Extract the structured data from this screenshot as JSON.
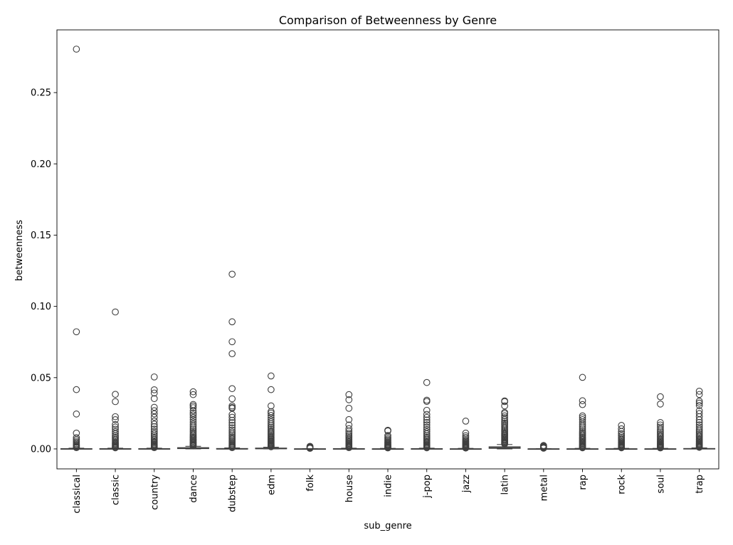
{
  "chart_data": {
    "type": "box",
    "title": "Comparison of Betweenness by Genre",
    "xlabel": "sub_genre",
    "ylabel": "betweenness",
    "ylim": [
      -0.014,
      0.294
    ],
    "yticks": [
      "0.00",
      "0.05",
      "0.10",
      "0.15",
      "0.20",
      "0.25"
    ],
    "ytick_values": [
      0,
      0.05,
      0.1,
      0.15,
      0.2,
      0.25
    ],
    "grid": false,
    "categories": [
      "classical",
      "classic",
      "country",
      "dance",
      "dubstep",
      "edm",
      "folk",
      "house",
      "indie",
      "j-pop",
      "jazz",
      "latin",
      "metal",
      "rap",
      "rock",
      "soul",
      "trap"
    ],
    "boxes": [
      {
        "q1": 0.0,
        "median": 0.0,
        "q3": 0.0002,
        "whisker_low": 0.0,
        "whisker_high": 0.0005,
        "outliers": [
          0.2805,
          0.0822,
          0.0416,
          0.0245,
          0.0111,
          0.0079,
          0.0066,
          0.0055,
          0.0046,
          0.0037,
          0.003,
          0.0024,
          0.0018,
          0.0013,
          0.0009
        ]
      },
      {
        "q1": 0.0,
        "median": 0.0,
        "q3": 0.0002,
        "whisker_low": 0.0,
        "whisker_high": 0.0005,
        "outliers": [
          0.0961,
          0.0383,
          0.0332,
          0.0226,
          0.0205,
          0.0171,
          0.0153,
          0.0138,
          0.0122,
          0.0108,
          0.0095,
          0.0084,
          0.0074,
          0.0064,
          0.0055,
          0.0047,
          0.004,
          0.0034,
          0.0028,
          0.0022,
          0.0017,
          0.0012,
          0.0008
        ]
      },
      {
        "q1": 0.0,
        "median": 0.0,
        "q3": 0.0002,
        "whisker_low": 0.0,
        "whisker_high": 0.0005,
        "outliers": [
          0.0505,
          0.0415,
          0.0392,
          0.0353,
          0.0292,
          0.0268,
          0.0246,
          0.0222,
          0.0196,
          0.0174,
          0.0156,
          0.0139,
          0.0123,
          0.0109,
          0.0096,
          0.0085,
          0.0075,
          0.0066,
          0.0057,
          0.0049,
          0.0042,
          0.0035,
          0.0029,
          0.0023,
          0.0018,
          0.0013,
          0.0009
        ]
      },
      {
        "q1": 0.0002,
        "median": 0.0004,
        "q3": 0.0009,
        "whisker_low": 0.0,
        "whisker_high": 0.0018,
        "outliers": [
          0.0401,
          0.0381,
          0.0312,
          0.0301,
          0.0289,
          0.0268,
          0.0251,
          0.0238,
          0.0221,
          0.0205,
          0.0189,
          0.0174,
          0.016,
          0.0147,
          0.0135,
          0.0123,
          0.0112,
          0.0102,
          0.0093,
          0.0084,
          0.0076,
          0.0068,
          0.0061,
          0.0054,
          0.0047,
          0.0041,
          0.0035,
          0.003,
          0.0025,
          0.0021
        ]
      },
      {
        "q1": 0.0,
        "median": 0.0,
        "q3": 0.0003,
        "whisker_low": 0.0,
        "whisker_high": 0.0007,
        "outliers": [
          0.1226,
          0.0892,
          0.0752,
          0.0668,
          0.0423,
          0.0352,
          0.0302,
          0.0291,
          0.0285,
          0.0241,
          0.0222,
          0.0201,
          0.0184,
          0.0166,
          0.0148,
          0.0132,
          0.0118,
          0.0105,
          0.0093,
          0.0082,
          0.0072,
          0.0062,
          0.0053,
          0.0045,
          0.0037,
          0.003,
          0.0024,
          0.0018,
          0.0013,
          0.0009
        ]
      },
      {
        "q1": 0.0001,
        "median": 0.0002,
        "q3": 0.0006,
        "whisker_low": 0.0,
        "whisker_high": 0.0012,
        "outliers": [
          0.0512,
          0.0416,
          0.0302,
          0.0262,
          0.0251,
          0.0235,
          0.0219,
          0.0204,
          0.019,
          0.0176,
          0.0163,
          0.0151,
          0.0139,
          0.0128,
          0.0118,
          0.0108,
          0.0099,
          0.009,
          0.0082,
          0.0074,
          0.0067,
          0.006,
          0.0054,
          0.0048,
          0.0042,
          0.0037,
          0.0032,
          0.0027,
          0.0023,
          0.0019,
          0.0015
        ]
      },
      {
        "q1": 0.0,
        "median": 0.0,
        "q3": 0.0001,
        "whisker_low": 0.0,
        "whisker_high": 0.0002,
        "outliers": [
          0.0018,
          0.0014,
          0.001,
          0.0007,
          0.0004
        ]
      },
      {
        "q1": 0.0,
        "median": 0.0,
        "q3": 0.0002,
        "whisker_low": 0.0,
        "whisker_high": 0.0005,
        "outliers": [
          0.0381,
          0.0345,
          0.0285,
          0.0206,
          0.0168,
          0.0142,
          0.0125,
          0.011,
          0.0097,
          0.0086,
          0.0076,
          0.0067,
          0.0059,
          0.0051,
          0.0044,
          0.0038,
          0.0032,
          0.0027,
          0.0022,
          0.0017,
          0.0013,
          0.0009
        ]
      },
      {
        "q1": 0.0,
        "median": 0.0,
        "q3": 0.0001,
        "whisker_low": 0.0,
        "whisker_high": 0.0004,
        "outliers": [
          0.0131,
          0.0126,
          0.0094,
          0.0082,
          0.0071,
          0.0062,
          0.0054,
          0.0047,
          0.0041,
          0.0035,
          0.003,
          0.0025,
          0.0021,
          0.0017,
          0.0013,
          0.001,
          0.0007
        ]
      },
      {
        "q1": 0.0,
        "median": 0.0,
        "q3": 0.0002,
        "whisker_low": 0.0,
        "whisker_high": 0.0005,
        "outliers": [
          0.0466,
          0.0342,
          0.0333,
          0.0271,
          0.0242,
          0.0221,
          0.0203,
          0.0186,
          0.0169,
          0.0152,
          0.0136,
          0.0121,
          0.0107,
          0.0095,
          0.0084,
          0.0074,
          0.0065,
          0.0056,
          0.0048,
          0.0041,
          0.0034,
          0.0028,
          0.0022,
          0.0017,
          0.0012,
          0.0008
        ]
      },
      {
        "q1": 0.0,
        "median": 0.0,
        "q3": 0.0001,
        "whisker_low": 0.0,
        "whisker_high": 0.0004,
        "outliers": [
          0.0195,
          0.0111,
          0.0093,
          0.0081,
          0.007,
          0.0061,
          0.0053,
          0.0046,
          0.004,
          0.0034,
          0.0029,
          0.0024,
          0.002,
          0.0016,
          0.0012,
          0.0009,
          0.0006
        ]
      },
      {
        "q1": 0.0004,
        "median": 0.0008,
        "q3": 0.0015,
        "whisker_low": 0.0,
        "whisker_high": 0.0031,
        "outliers": [
          0.0337,
          0.0332,
          0.0302,
          0.0256,
          0.0248,
          0.0232,
          0.0218,
          0.0205,
          0.0193,
          0.0181,
          0.017,
          0.0159,
          0.0149,
          0.0139,
          0.013,
          0.0121,
          0.0112,
          0.0104,
          0.0096,
          0.0089,
          0.0082,
          0.0075,
          0.0068,
          0.0062,
          0.0056,
          0.005,
          0.0045,
          0.004,
          0.0035
        ]
      },
      {
        "q1": 0.0,
        "median": 0.0,
        "q3": 0.0001,
        "whisker_low": 0.0,
        "whisker_high": 0.0002,
        "outliers": [
          0.0024,
          0.0019,
          0.0015,
          0.0011,
          0.0008,
          0.0005
        ]
      },
      {
        "q1": 0.0,
        "median": 0.0,
        "q3": 0.0001,
        "whisker_low": 0.0,
        "whisker_high": 0.0004,
        "outliers": [
          0.0502,
          0.0338,
          0.0311,
          0.0232,
          0.0219,
          0.0205,
          0.0189,
          0.0174,
          0.016,
          0.0147,
          0.0134,
          0.0122,
          0.0111,
          0.0101,
          0.0091,
          0.0082,
          0.0074,
          0.0066,
          0.0058,
          0.0051,
          0.0044,
          0.0038,
          0.0032,
          0.0026,
          0.0021,
          0.0016,
          0.0012,
          0.0008
        ]
      },
      {
        "q1": 0.0,
        "median": 0.0,
        "q3": 0.0001,
        "whisker_low": 0.0,
        "whisker_high": 0.0004,
        "outliers": [
          0.0165,
          0.0141,
          0.0122,
          0.0107,
          0.0094,
          0.0082,
          0.0072,
          0.0063,
          0.0055,
          0.0048,
          0.0041,
          0.0035,
          0.003,
          0.0025,
          0.002,
          0.0016,
          0.0012,
          0.0008
        ]
      },
      {
        "q1": 0.0,
        "median": 0.0,
        "q3": 0.0001,
        "whisker_low": 0.0,
        "whisker_high": 0.0004,
        "outliers": [
          0.0366,
          0.0315,
          0.0185,
          0.0168,
          0.0153,
          0.0139,
          0.0126,
          0.0114,
          0.0103,
          0.0093,
          0.0084,
          0.0075,
          0.0067,
          0.006,
          0.0053,
          0.0046,
          0.004,
          0.0034,
          0.0029,
          0.0024,
          0.0019,
          0.0015,
          0.0011,
          0.0007
        ]
      },
      {
        "q1": 0.0,
        "median": 0.0001,
        "q3": 0.0003,
        "whisker_low": 0.0,
        "whisker_high": 0.0007,
        "outliers": [
          0.0405,
          0.0382,
          0.0335,
          0.0321,
          0.0305,
          0.0268,
          0.0248,
          0.0226,
          0.0204,
          0.0186,
          0.0169,
          0.0153,
          0.0139,
          0.0126,
          0.0114,
          0.0103,
          0.0093,
          0.0084,
          0.0075,
          0.0067,
          0.006,
          0.0053,
          0.0046,
          0.004,
          0.0034,
          0.0029,
          0.0024,
          0.0019,
          0.0015,
          0.0011
        ]
      }
    ]
  }
}
